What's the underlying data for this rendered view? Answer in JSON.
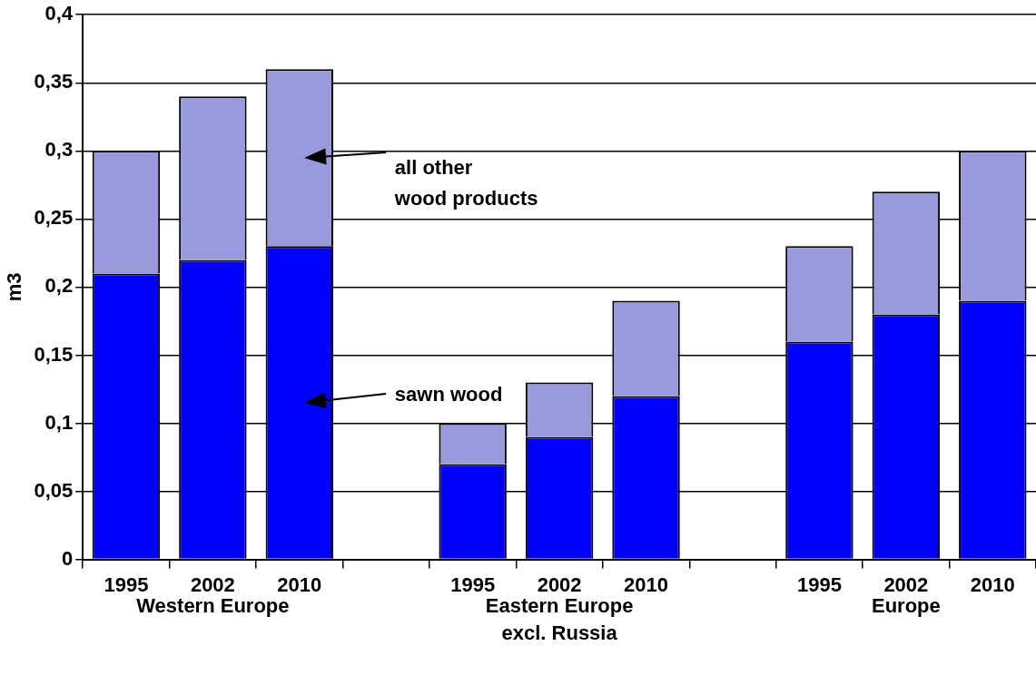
{
  "chart_data": {
    "type": "bar",
    "stacked": true,
    "ylabel": "m3",
    "categories": [
      "1995",
      "2002",
      "2010",
      null,
      "1995",
      "2002",
      "2010",
      null,
      "1995",
      "2002",
      "2010"
    ],
    "series": [
      {
        "name": "sawn wood",
        "color": "#0000ff",
        "values": [
          0.21,
          0.22,
          0.23,
          null,
          0.07,
          0.09,
          0.12,
          null,
          0.16,
          0.18,
          0.19
        ]
      },
      {
        "name": "all other\nwood products",
        "color": "#9999dd",
        "values": [
          0.09,
          0.12,
          0.13,
          null,
          0.03,
          0.04,
          0.07,
          null,
          0.07,
          0.09,
          0.11
        ]
      }
    ],
    "annotations": [
      "Western Europe",
      "Eastern Europe\nexcl. Russia",
      "Europe"
    ],
    "ylim": [
      0,
      0.4
    ],
    "yticks": [
      {
        "value": 0,
        "label": "0"
      },
      {
        "value": 0.05,
        "label": "0,05"
      },
      {
        "value": 0.1,
        "label": "0,1"
      },
      {
        "value": 0.15,
        "label": "0,15"
      },
      {
        "value": 0.2,
        "label": "0,2"
      },
      {
        "value": 0.25,
        "label": "0,25"
      },
      {
        "value": 0.3,
        "label": "0,3"
      },
      {
        "value": 0.35,
        "label": "0,35"
      },
      {
        "value": 0.4,
        "label": "0,4"
      }
    ],
    "grid": "y",
    "legend": false
  }
}
